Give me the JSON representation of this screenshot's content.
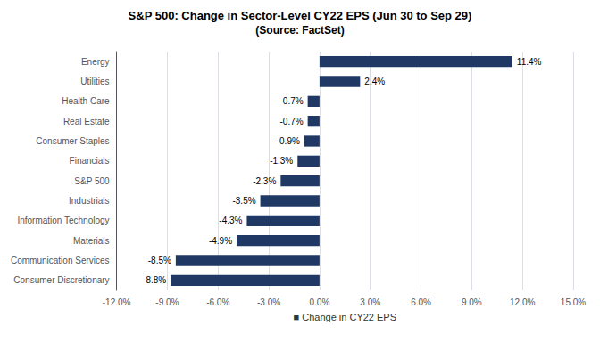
{
  "chart_data": {
    "type": "bar",
    "orientation": "horizontal",
    "title": "S&P 500: Change in Sector-Level CY22 EPS (Jun 30 to Sep 29)",
    "subtitle": "(Source: FactSet)",
    "xlabel": "■ Change in CY22 EPS",
    "categories": [
      "Consumer Discretionary",
      "Communication Services",
      "Materials",
      "Information Technology",
      "Industrials",
      "S&P 500",
      "Financials",
      "Consumer Staples",
      "Real Estate",
      "Health Care",
      "Utilities",
      "Energy"
    ],
    "values": [
      -8.8,
      -8.5,
      -4.9,
      -4.3,
      -3.5,
      -2.3,
      -1.3,
      -0.9,
      -0.7,
      -0.7,
      2.4,
      11.4
    ],
    "value_labels": [
      "-8.8%",
      "-8.5%",
      "-4.9%",
      "-4.3%",
      "-3.5%",
      "-2.3%",
      "-1.3%",
      "-0.9%",
      "-0.7%",
      "-0.7%",
      "2.4%",
      "11.4%"
    ],
    "data_labels": true,
    "color": "#1F3864",
    "xlim": [
      -12.0,
      15.0
    ],
    "xticks": [
      {
        "value": -12.0,
        "label": "-12.0%"
      },
      {
        "value": -9.0,
        "label": "-9.0%"
      },
      {
        "value": -6.0,
        "label": "-6.0%"
      },
      {
        "value": -3.0,
        "label": "-3.0%"
      },
      {
        "value": 0.0,
        "label": "0.0%"
      },
      {
        "value": 3.0,
        "label": "3.0%"
      },
      {
        "value": 6.0,
        "label": "6.0%"
      },
      {
        "value": 9.0,
        "label": "9.0%"
      },
      {
        "value": 12.0,
        "label": "12.0%"
      },
      {
        "value": 15.0,
        "label": "15.0%"
      }
    ],
    "grid": true
  }
}
